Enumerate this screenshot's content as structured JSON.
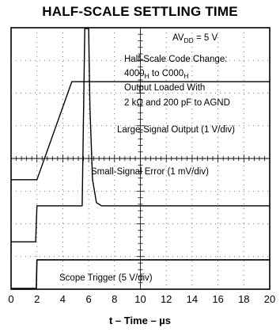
{
  "chart_data": {
    "type": "line",
    "title": "HALF-SCALE SETTLING TIME",
    "xlabel": "t – Time – µs",
    "ylabel": "",
    "xlim": [
      0,
      20
    ],
    "x_ticks": [
      "0",
      "2",
      "4",
      "6",
      "8",
      "10",
      "12",
      "14",
      "16",
      "18",
      "20"
    ],
    "grid": true,
    "annotations": {
      "supply": "AVDD = 5 V",
      "supply_main": "AV",
      "supply_sub": "DD",
      "supply_rest": " = 5 V",
      "code_change_line": "Half-Scale Code Change:",
      "code_from": "4000",
      "code_sub_h1": "H",
      "code_to_text": " to C000",
      "code_sub_h2": "H",
      "load_line1": "Output Loaded With",
      "load_line2": "2 kΩ and 200 pF to AGND"
    },
    "series": [
      {
        "name": "Large-Signal Output (1 V/div)",
        "x": [
          0,
          2,
          4.7,
          5.3,
          20
        ],
        "y": [
          0,
          0,
          3,
          3,
          3
        ]
      },
      {
        "name": "Small-Signal Error (1 mV/div)",
        "x": [
          0,
          1.9,
          2.0,
          5.4,
          5.5,
          5.7,
          5.8,
          5.9,
          6.0,
          6.1,
          6.3,
          6.6,
          7.0,
          20
        ],
        "y": [
          -1.1,
          -1.1,
          0,
          0,
          0,
          8,
          8.7,
          8.7,
          8,
          3,
          0.8,
          0.1,
          0,
          0
        ]
      },
      {
        "name": "Scope Trigger (5 V/div)",
        "x": [
          0,
          1.95,
          2.0,
          20
        ],
        "y": [
          0,
          0,
          1,
          1
        ]
      }
    ]
  }
}
